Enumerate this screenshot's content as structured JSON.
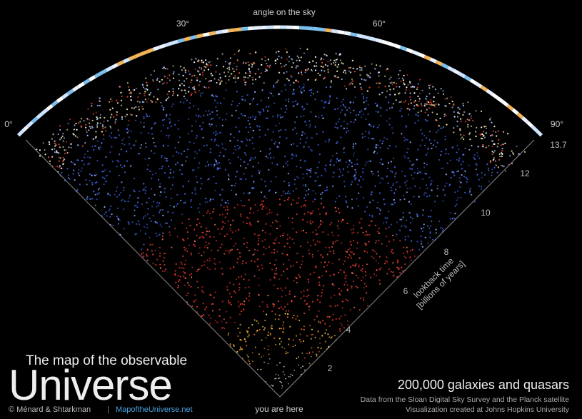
{
  "header": {
    "axis_title": "angle on the sky",
    "angle_labels": [
      "0°",
      "30°",
      "60°",
      "90°"
    ]
  },
  "lookback": {
    "labels": [
      "2",
      "4",
      "6",
      "8",
      "10",
      "12",
      "13.7"
    ],
    "title": "lookback time",
    "subtitle": "[billions of years]"
  },
  "origin_label": "you are here",
  "title": {
    "line1": "The map of the observable",
    "line2": "Universe"
  },
  "credits": {
    "authors": "© Ménard & Shtarkman",
    "separator": "|",
    "website": "MapoftheUniverse.net"
  },
  "summary": {
    "headline": "200,000 galaxies and quasars",
    "source": "Data from the Sloan Digital Sky Survey and the Planck satellite",
    "credit": "Visualization created at Johns Hopkins University"
  }
}
